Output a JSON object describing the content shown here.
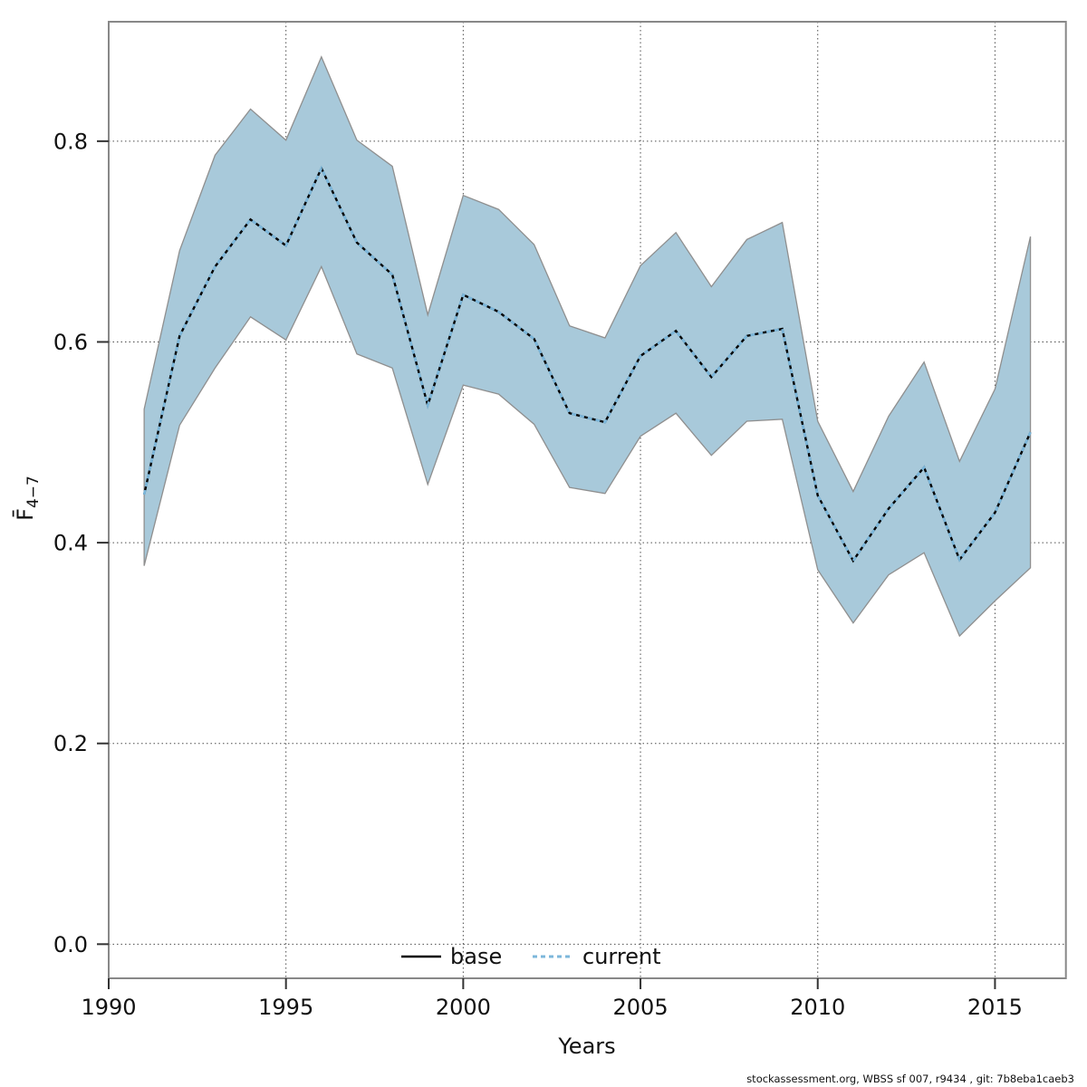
{
  "chart_data": {
    "type": "line",
    "title": "",
    "xlabel": "Years",
    "ylabel": "F̄4−7",
    "ylabel_main": "F̄",
    "ylabel_sub": "4−7",
    "xlim": [
      1990,
      2017
    ],
    "ylim": [
      -0.034,
      0.919
    ],
    "x_ticks": [
      1990,
      1995,
      2000,
      2005,
      2010,
      2015
    ],
    "y_ticks": [
      0.0,
      0.2,
      0.4,
      0.6,
      0.8
    ],
    "grid": "dotted",
    "legend_position": "bottom-center-inside",
    "colors": {
      "band_fill": "#A8C9DA",
      "band_edge": "#8F8F8F",
      "base_line": "#000000",
      "current_line": "#7CB7DB",
      "plot_border": "#888888",
      "grid_dots": "#4D4D4D"
    },
    "years": [
      1991,
      1992,
      1993,
      1994,
      1995,
      1996,
      1997,
      1998,
      1999,
      2000,
      2001,
      2002,
      2003,
      2004,
      2005,
      2006,
      2007,
      2008,
      2009,
      2010,
      2011,
      2012,
      2013,
      2014,
      2015,
      2016
    ],
    "series": [
      {
        "name": "base",
        "values": [
          0.448,
          0.606,
          0.675,
          0.722,
          0.696,
          0.773,
          0.699,
          0.667,
          0.537,
          0.647,
          0.63,
          0.603,
          0.529,
          0.52,
          0.586,
          0.611,
          0.565,
          0.606,
          0.613,
          0.447,
          0.382,
          0.434,
          0.475,
          0.383,
          0.43,
          0.51
        ]
      },
      {
        "name": "current",
        "values": [
          0.448,
          0.606,
          0.675,
          0.722,
          0.696,
          0.773,
          0.699,
          0.667,
          0.537,
          0.647,
          0.63,
          0.603,
          0.529,
          0.52,
          0.586,
          0.611,
          0.565,
          0.606,
          0.613,
          0.447,
          0.382,
          0.434,
          0.475,
          0.383,
          0.43,
          0.51
        ]
      }
    ],
    "band": {
      "upper": [
        0.533,
        0.691,
        0.786,
        0.832,
        0.801,
        0.884,
        0.801,
        0.775,
        0.627,
        0.746,
        0.732,
        0.697,
        0.616,
        0.604,
        0.676,
        0.709,
        0.655,
        0.702,
        0.719,
        0.521,
        0.451,
        0.526,
        0.58,
        0.481,
        0.553,
        0.705
      ],
      "lower": [
        0.377,
        0.517,
        0.574,
        0.625,
        0.602,
        0.675,
        0.588,
        0.574,
        0.458,
        0.557,
        0.548,
        0.518,
        0.455,
        0.449,
        0.506,
        0.529,
        0.487,
        0.521,
        0.523,
        0.373,
        0.32,
        0.368,
        0.39,
        0.307,
        0.342,
        0.375
      ]
    },
    "legend": [
      {
        "label": "base",
        "style": "solid",
        "color": "#000000"
      },
      {
        "label": "current",
        "style": "dotted",
        "color": "#7CB7DB"
      }
    ]
  },
  "footer": {
    "credit": "stockassessment.org, WBSS sf 007, r9434 , git: 7b8eba1caeb3"
  }
}
